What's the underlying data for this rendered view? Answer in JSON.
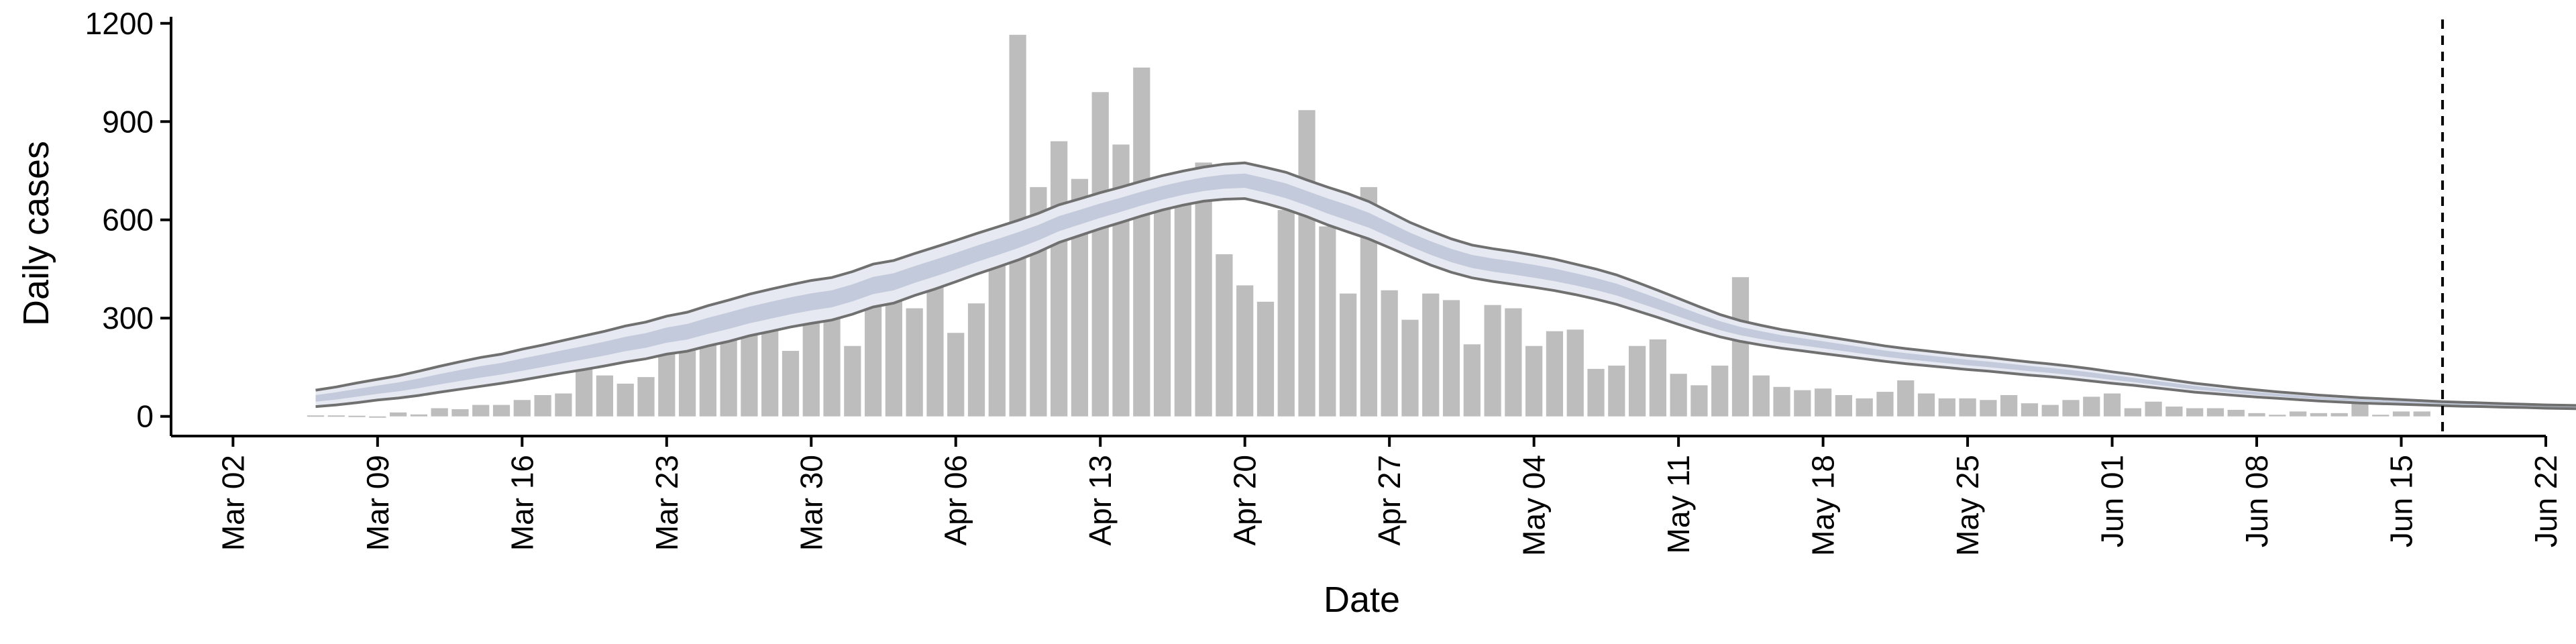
{
  "chart_data": {
    "type": "bar",
    "title": "",
    "xlabel": "Date",
    "ylabel": "Daily cases",
    "xlim": [
      "2020-02-28",
      "2020-06-22"
    ],
    "ylim": [
      -60,
      1220
    ],
    "y_ticks": [
      0,
      300,
      600,
      900,
      1200
    ],
    "x_ticks": [
      {
        "date": "2020-03-02",
        "label": "Mar 02"
      },
      {
        "date": "2020-03-09",
        "label": "Mar 09"
      },
      {
        "date": "2020-03-16",
        "label": "Mar 16"
      },
      {
        "date": "2020-03-23",
        "label": "Mar 23"
      },
      {
        "date": "2020-03-30",
        "label": "Mar 30"
      },
      {
        "date": "2020-04-06",
        "label": "Apr 06"
      },
      {
        "date": "2020-04-13",
        "label": "Apr 13"
      },
      {
        "date": "2020-04-20",
        "label": "Apr 20"
      },
      {
        "date": "2020-04-27",
        "label": "Apr 27"
      },
      {
        "date": "2020-05-04",
        "label": "May 04"
      },
      {
        "date": "2020-05-11",
        "label": "May 11"
      },
      {
        "date": "2020-05-18",
        "label": "May 18"
      },
      {
        "date": "2020-05-25",
        "label": "May 25"
      },
      {
        "date": "2020-06-01",
        "label": "Jun 01"
      },
      {
        "date": "2020-06-08",
        "label": "Jun 08"
      },
      {
        "date": "2020-06-15",
        "label": "Jun 15"
      },
      {
        "date": "2020-06-22",
        "label": "Jun 22"
      }
    ],
    "grid": false,
    "vline_date": "2020-06-17",
    "colors": {
      "bars": "#bdbdbd",
      "band_outer": "#e6e9f1",
      "band_inner": "#c3cadb",
      "bound_lines": "#707070",
      "axis": "#000000"
    },
    "bars": {
      "start_date": "2020-03-06",
      "values": [
        3,
        3,
        2,
        0,
        12,
        6,
        25,
        22,
        35,
        35,
        50,
        65,
        70,
        190,
        125,
        100,
        120,
        220,
        205,
        235,
        255,
        300,
        290,
        200,
        295,
        325,
        215,
        400,
        420,
        330,
        510,
        255,
        345,
        515,
        1165,
        700,
        840,
        725,
        990,
        830,
        1065,
        720,
        710,
        775,
        495,
        400,
        350,
        630,
        935,
        580,
        375,
        700,
        385,
        295,
        375,
        355,
        220,
        340,
        330,
        215,
        260,
        265,
        145,
        155,
        215,
        235,
        130,
        95,
        155,
        425,
        125,
        90,
        80,
        85,
        65,
        55,
        75,
        110,
        70,
        55,
        55,
        50,
        65,
        40,
        35,
        50,
        60,
        70,
        25,
        45,
        30,
        25,
        25,
        20,
        10,
        5,
        15,
        10,
        10,
        45,
        5,
        15,
        15
      ]
    },
    "ci_band": {
      "start_date": "2020-03-06",
      "upper": [
        80,
        90,
        102,
        113,
        124,
        138,
        153,
        167,
        180,
        190,
        205,
        218,
        232,
        246,
        260,
        276,
        288,
        306,
        318,
        338,
        355,
        373,
        388,
        402,
        415,
        424,
        442,
        465,
        476,
        497,
        517,
        537,
        558,
        578,
        598,
        620,
        646,
        664,
        683,
        700,
        718,
        735,
        749,
        761,
        770,
        774,
        760,
        745,
        722,
        700,
        680,
        656,
        624,
        592,
        566,
        542,
        523,
        512,
        503,
        492,
        480,
        465,
        450,
        432,
        409,
        385,
        360,
        335,
        311,
        292,
        278,
        265,
        255,
        245,
        235,
        225,
        215,
        207,
        200,
        193,
        186,
        180,
        173,
        166,
        160,
        153,
        145,
        136,
        128,
        119,
        110,
        101,
        94,
        87,
        81,
        75,
        70,
        65,
        61,
        57,
        54,
        51,
        48,
        45,
        43,
        41,
        39,
        37,
        35,
        34,
        33,
        31,
        30,
        29,
        28,
        27,
        26,
        24,
        22,
        21,
        20,
        19,
        18
      ],
      "lower": [
        30,
        35,
        42,
        50,
        56,
        64,
        74,
        83,
        92,
        101,
        111,
        122,
        133,
        143,
        154,
        166,
        176,
        190,
        199,
        215,
        229,
        246,
        259,
        273,
        284,
        294,
        312,
        334,
        346,
        369,
        389,
        411,
        434,
        455,
        477,
        502,
        531,
        552,
        573,
        592,
        612,
        630,
        645,
        657,
        663,
        665,
        650,
        632,
        610,
        585,
        563,
        542,
        515,
        488,
        462,
        440,
        423,
        412,
        403,
        394,
        384,
        372,
        358,
        342,
        322,
        302,
        281,
        261,
        243,
        229,
        218,
        208,
        200,
        192,
        184,
        176,
        168,
        161,
        155,
        149,
        143,
        138,
        132,
        126,
        121,
        115,
        108,
        101,
        95,
        88,
        81,
        74,
        69,
        64,
        59,
        55,
        51,
        47,
        44,
        41,
        39,
        37,
        35,
        33,
        31,
        30,
        28,
        27,
        25,
        24,
        23,
        22,
        21,
        21,
        20,
        19,
        18,
        17,
        16,
        15,
        15,
        14,
        13
      ]
    }
  }
}
